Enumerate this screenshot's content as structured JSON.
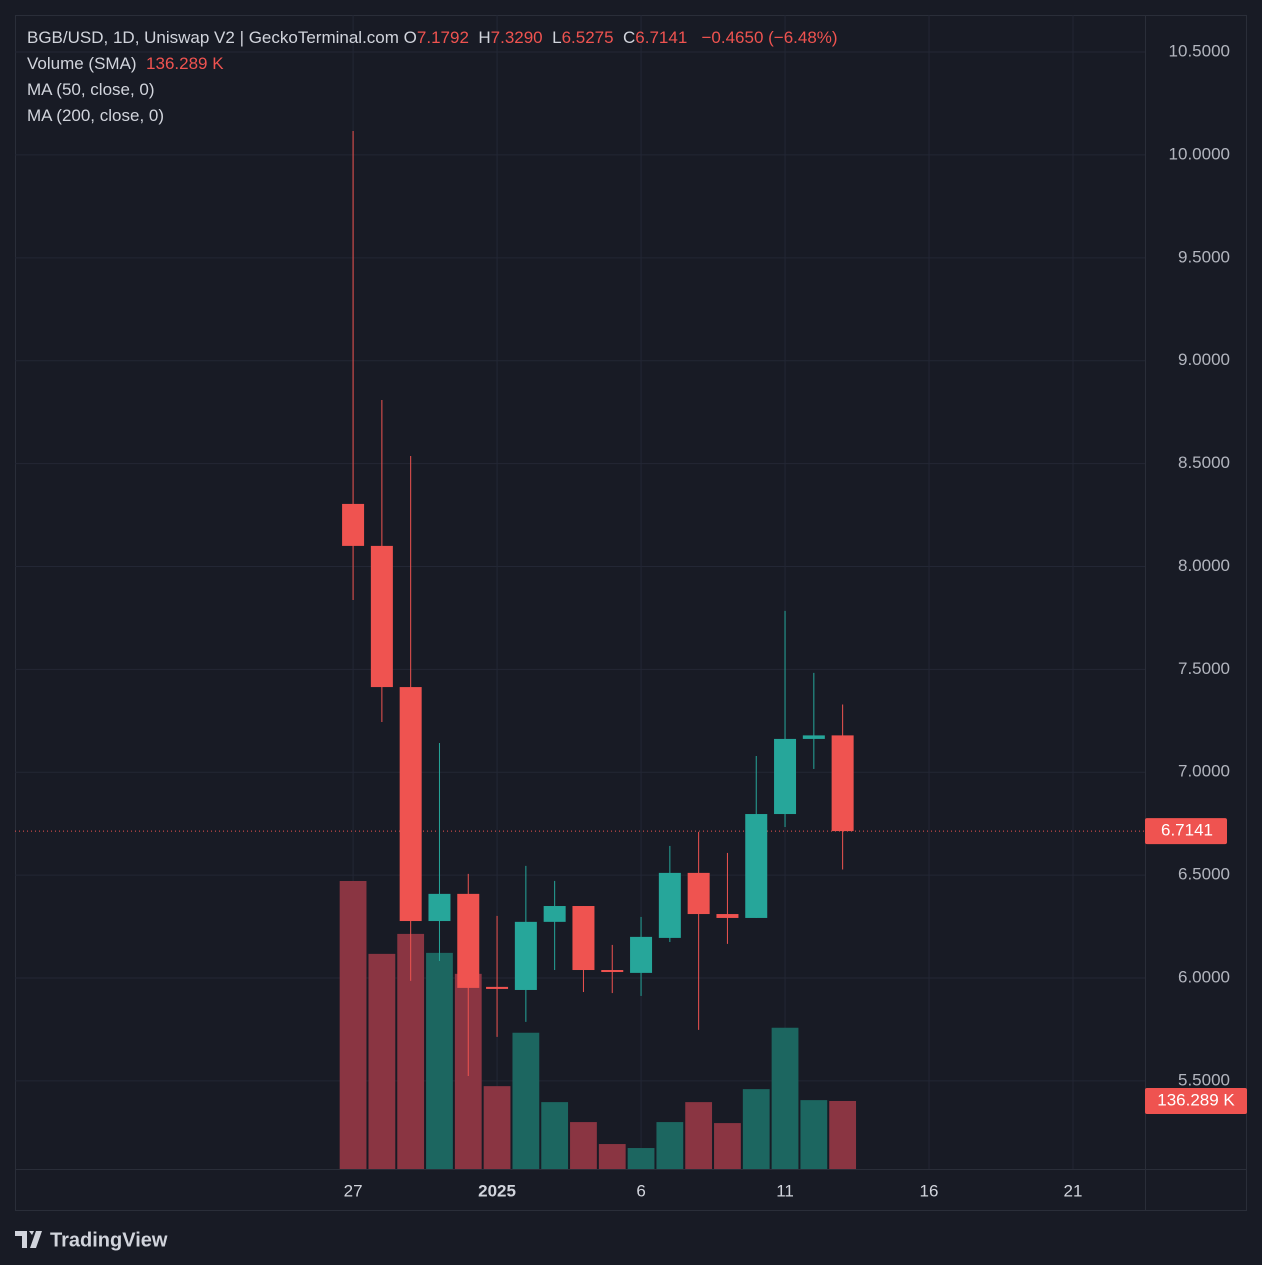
{
  "chart_data": {
    "type": "candlestick",
    "title": "BGB/USD, 1D, Uniswap V2 | GeckoTerminal.com",
    "ohlc_legend": [
      {
        "key": "O",
        "value": "7.1792"
      },
      {
        "key": "H",
        "value": "7.3290"
      },
      {
        "key": "L",
        "value": "6.5275"
      },
      {
        "key": "C",
        "value": "6.7141"
      }
    ],
    "change": "−0.4650 (−6.48%)",
    "volume_name": "Volume (SMA)",
    "current_volume_label": "136.289 K",
    "indicators": [
      "MA (50, close, 0)",
      "MA (200, close, 0)"
    ],
    "x": [
      27,
      28,
      29,
      30,
      31,
      32,
      33,
      34,
      35,
      36,
      37,
      38,
      39,
      40,
      41,
      42,
      43,
      44
    ],
    "open": [
      8.304,
      8.1,
      7.414,
      6.277,
      6.409,
      5.957,
      5.942,
      6.273,
      6.35,
      6.039,
      6.025,
      6.195,
      6.511,
      6.311,
      6.292,
      6.797,
      7.162,
      7.1792
    ],
    "high": [
      10.116,
      8.809,
      8.537,
      7.142,
      6.506,
      6.302,
      6.545,
      6.472,
      6.35,
      6.161,
      6.297,
      6.642,
      6.71,
      6.608,
      7.079,
      7.784,
      7.483,
      7.329
    ],
    "low": [
      7.837,
      7.244,
      5.986,
      6.083,
      5.524,
      5.714,
      5.787,
      6.039,
      5.932,
      5.927,
      5.913,
      6.175,
      5.748,
      6.166,
      6.292,
      6.734,
      7.016,
      6.5275
    ],
    "close": [
      8.1,
      7.414,
      6.277,
      6.409,
      5.952,
      5.947,
      6.273,
      6.35,
      6.039,
      6.03,
      6.2,
      6.511,
      6.311,
      6.292,
      6.797,
      7.162,
      7.1792,
      6.7141
    ],
    "volume": [
      577,
      431,
      471,
      433,
      391,
      166,
      273,
      134,
      94,
      50,
      42,
      94,
      134,
      92,
      160,
      283,
      138,
      136.289
    ],
    "up_color": "#26a69a",
    "down_color": "#ef5350",
    "volume_up_color": "#1c6660",
    "volume_down_color": "#8a3542",
    "xlim": [
      15.26,
      54.5
    ],
    "xticks": [
      {
        "value": 27,
        "label": "27"
      },
      {
        "value": 32,
        "label": "2025"
      },
      {
        "value": 37,
        "label": "6"
      },
      {
        "value": 42,
        "label": "11"
      },
      {
        "value": 47,
        "label": "16"
      },
      {
        "value": 52,
        "label": "21"
      }
    ],
    "ylim": [
      5.072,
      10.68
    ],
    "yticks": [
      {
        "value": 5.5,
        "label": "5.5000"
      },
      {
        "value": 6,
        "label": "6.0000"
      },
      {
        "value": 6.5,
        "label": "6.5000"
      },
      {
        "value": 7,
        "label": "7.0000"
      },
      {
        "value": 7.5,
        "label": "7.5000"
      },
      {
        "value": 8,
        "label": "8.0000"
      },
      {
        "value": 8.5,
        "label": "8.5000"
      },
      {
        "value": 9,
        "label": "9.0000"
      },
      {
        "value": 9.5,
        "label": "9.5000"
      },
      {
        "value": 10,
        "label": "10.0000"
      },
      {
        "value": 10.5,
        "label": "10.5000"
      }
    ],
    "grid": true,
    "footer_brand": "TradingView"
  }
}
